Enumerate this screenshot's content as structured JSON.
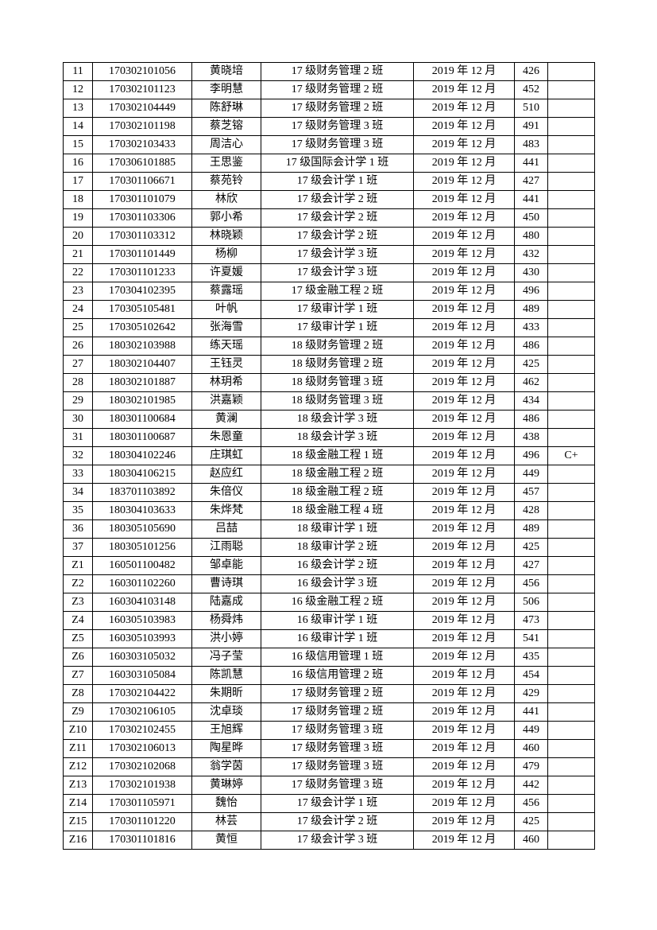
{
  "page": {
    "kind": "printed score list continuation page",
    "text_color": "#000000",
    "background_color": "#ffffff",
    "border_color": "#000000"
  },
  "table": {
    "column_names": [
      "row-number",
      "student-id",
      "student-name",
      "class",
      "exam-date",
      "score",
      "grade"
    ],
    "rows": [
      {
        "no": "11",
        "student_id": "170302101056",
        "name": "黄晓培",
        "class": "17 级财务管理 2 班",
        "exam_date": "2019 年 12 月",
        "score": "426",
        "grade": ""
      },
      {
        "no": "12",
        "student_id": "170302101123",
        "name": "李明慧",
        "class": "17 级财务管理 2 班",
        "exam_date": "2019 年 12 月",
        "score": "452",
        "grade": ""
      },
      {
        "no": "13",
        "student_id": "170302104449",
        "name": "陈舒琳",
        "class": "17 级财务管理 2 班",
        "exam_date": "2019 年 12 月",
        "score": "510",
        "grade": ""
      },
      {
        "no": "14",
        "student_id": "170302101198",
        "name": "蔡芝镕",
        "class": "17 级财务管理 3 班",
        "exam_date": "2019 年 12 月",
        "score": "491",
        "grade": ""
      },
      {
        "no": "15",
        "student_id": "170302103433",
        "name": "周洁心",
        "class": "17 级财务管理 3 班",
        "exam_date": "2019 年 12 月",
        "score": "483",
        "grade": ""
      },
      {
        "no": "16",
        "student_id": "170306101885",
        "name": "王思鉴",
        "class": "17 级国际会计学 1 班",
        "exam_date": "2019 年 12 月",
        "score": "441",
        "grade": ""
      },
      {
        "no": "17",
        "student_id": "170301106671",
        "name": "蔡苑铃",
        "class": "17 级会计学 1 班",
        "exam_date": "2019 年 12 月",
        "score": "427",
        "grade": ""
      },
      {
        "no": "18",
        "student_id": "170301101079",
        "name": "林欣",
        "class": "17 级会计学 2 班",
        "exam_date": "2019 年 12 月",
        "score": "441",
        "grade": ""
      },
      {
        "no": "19",
        "student_id": "170301103306",
        "name": "郭小希",
        "class": "17 级会计学 2 班",
        "exam_date": "2019 年 12 月",
        "score": "450",
        "grade": ""
      },
      {
        "no": "20",
        "student_id": "170301103312",
        "name": "林晓颖",
        "class": "17 级会计学 2 班",
        "exam_date": "2019 年 12 月",
        "score": "480",
        "grade": ""
      },
      {
        "no": "21",
        "student_id": "170301101449",
        "name": "杨柳",
        "class": "17 级会计学 3 班",
        "exam_date": "2019 年 12 月",
        "score": "432",
        "grade": ""
      },
      {
        "no": "22",
        "student_id": "170301101233",
        "name": "许夏媛",
        "class": "17 级会计学 3 班",
        "exam_date": "2019 年 12 月",
        "score": "430",
        "grade": ""
      },
      {
        "no": "23",
        "student_id": "170304102395",
        "name": "蔡露瑶",
        "class": "17 级金融工程 2 班",
        "exam_date": "2019 年 12 月",
        "score": "496",
        "grade": ""
      },
      {
        "no": "24",
        "student_id": "170305105481",
        "name": "叶帆",
        "class": "17 级审计学 1 班",
        "exam_date": "2019 年 12 月",
        "score": "489",
        "grade": ""
      },
      {
        "no": "25",
        "student_id": "170305102642",
        "name": "张海雪",
        "class": "17 级审计学 1 班",
        "exam_date": "2019 年 12 月",
        "score": "433",
        "grade": ""
      },
      {
        "no": "26",
        "student_id": "180302103988",
        "name": "练天瑶",
        "class": "18 级财务管理 2 班",
        "exam_date": "2019 年 12 月",
        "score": "486",
        "grade": ""
      },
      {
        "no": "27",
        "student_id": "180302104407",
        "name": "王钰灵",
        "class": "18 级财务管理 2 班",
        "exam_date": "2019 年 12 月",
        "score": "425",
        "grade": ""
      },
      {
        "no": "28",
        "student_id": "180302101887",
        "name": "林玥希",
        "class": "18 级财务管理 3 班",
        "exam_date": "2019 年 12 月",
        "score": "462",
        "grade": ""
      },
      {
        "no": "29",
        "student_id": "180302101985",
        "name": "洪嘉颖",
        "class": "18 级财务管理 3 班",
        "exam_date": "2019 年 12 月",
        "score": "434",
        "grade": ""
      },
      {
        "no": "30",
        "student_id": "180301100684",
        "name": "黄澜",
        "class": "18 级会计学 3 班",
        "exam_date": "2019 年 12 月",
        "score": "486",
        "grade": ""
      },
      {
        "no": "31",
        "student_id": "180301100687",
        "name": "朱恩童",
        "class": "18 级会计学 3 班",
        "exam_date": "2019 年 12 月",
        "score": "438",
        "grade": ""
      },
      {
        "no": "32",
        "student_id": "180304102246",
        "name": "庄琪虹",
        "class": "18 级金融工程 1 班",
        "exam_date": "2019 年 12 月",
        "score": "496",
        "grade": "C+"
      },
      {
        "no": "33",
        "student_id": "180304106215",
        "name": "赵应红",
        "class": "18 级金融工程 2 班",
        "exam_date": "2019 年 12 月",
        "score": "449",
        "grade": ""
      },
      {
        "no": "34",
        "student_id": "183701103892",
        "name": "朱倍仪",
        "class": "18 级金融工程 2 班",
        "exam_date": "2019 年 12 月",
        "score": "457",
        "grade": ""
      },
      {
        "no": "35",
        "student_id": "180304103633",
        "name": "朱烨梵",
        "class": "18 级金融工程 4 班",
        "exam_date": "2019 年 12 月",
        "score": "428",
        "grade": ""
      },
      {
        "no": "36",
        "student_id": "180305105690",
        "name": "吕喆",
        "class": "18 级审计学 1 班",
        "exam_date": "2019 年 12 月",
        "score": "489",
        "grade": ""
      },
      {
        "no": "37",
        "student_id": "180305101256",
        "name": "江雨聪",
        "class": "18 级审计学 2 班",
        "exam_date": "2019 年 12 月",
        "score": "425",
        "grade": ""
      },
      {
        "no": "Z1",
        "student_id": "160501100482",
        "name": "邹卓能",
        "class": "16 级会计学 2 班",
        "exam_date": "2019 年 12 月",
        "score": "427",
        "grade": ""
      },
      {
        "no": "Z2",
        "student_id": "160301102260",
        "name": "曹诗琪",
        "class": "16 级会计学 3 班",
        "exam_date": "2019 年 12 月",
        "score": "456",
        "grade": ""
      },
      {
        "no": "Z3",
        "student_id": "160304103148",
        "name": "陆嘉成",
        "class": "16 级金融工程 2 班",
        "exam_date": "2019 年 12 月",
        "score": "506",
        "grade": ""
      },
      {
        "no": "Z4",
        "student_id": "160305103983",
        "name": "杨舜炜",
        "class": "16 级审计学 1 班",
        "exam_date": "2019 年 12 月",
        "score": "473",
        "grade": ""
      },
      {
        "no": "Z5",
        "student_id": "160305103993",
        "name": "洪小婷",
        "class": "16 级审计学 1 班",
        "exam_date": "2019 年 12 月",
        "score": "541",
        "grade": ""
      },
      {
        "no": "Z6",
        "student_id": "160303105032",
        "name": "冯子莹",
        "class": "16 级信用管理 1 班",
        "exam_date": "2019 年 12 月",
        "score": "435",
        "grade": ""
      },
      {
        "no": "Z7",
        "student_id": "160303105084",
        "name": "陈凯慧",
        "class": "16 级信用管理 2 班",
        "exam_date": "2019 年 12 月",
        "score": "454",
        "grade": ""
      },
      {
        "no": "Z8",
        "student_id": "170302104422",
        "name": "朱期昕",
        "class": "17 级财务管理 2 班",
        "exam_date": "2019 年 12 月",
        "score": "429",
        "grade": ""
      },
      {
        "no": "Z9",
        "student_id": "170302106105",
        "name": "沈卓琰",
        "class": "17 级财务管理 2 班",
        "exam_date": "2019 年 12 月",
        "score": "441",
        "grade": ""
      },
      {
        "no": "Z10",
        "student_id": "170302102455",
        "name": "王旭辉",
        "class": "17 级财务管理 3 班",
        "exam_date": "2019 年 12 月",
        "score": "449",
        "grade": ""
      },
      {
        "no": "Z11",
        "student_id": "170302106013",
        "name": "陶星晔",
        "class": "17 级财务管理 3 班",
        "exam_date": "2019 年 12 月",
        "score": "460",
        "grade": ""
      },
      {
        "no": "Z12",
        "student_id": "170302102068",
        "name": "翁学茵",
        "class": "17 级财务管理 3 班",
        "exam_date": "2019 年 12 月",
        "score": "479",
        "grade": ""
      },
      {
        "no": "Z13",
        "student_id": "170302101938",
        "name": "黄琳婷",
        "class": "17 级财务管理 3 班",
        "exam_date": "2019 年 12 月",
        "score": "442",
        "grade": ""
      },
      {
        "no": "Z14",
        "student_id": "170301105971",
        "name": "魏怡",
        "class": "17 级会计学 1 班",
        "exam_date": "2019 年 12 月",
        "score": "456",
        "grade": ""
      },
      {
        "no": "Z15",
        "student_id": "170301101220",
        "name": "林芸",
        "class": "17 级会计学 2 班",
        "exam_date": "2019 年 12 月",
        "score": "425",
        "grade": ""
      },
      {
        "no": "Z16",
        "student_id": "170301101816",
        "name": "黄恒",
        "class": "17 级会计学 3 班",
        "exam_date": "2019 年 12 月",
        "score": "460",
        "grade": ""
      }
    ]
  }
}
